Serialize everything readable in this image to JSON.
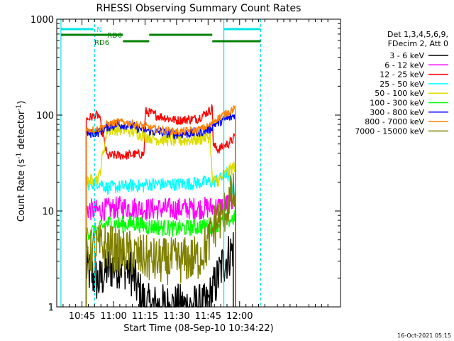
{
  "chart_data": {
    "type": "line",
    "title": "RHESSI Observing Summary Count Rates",
    "xlabel": "Start Time (08-Sep-10 10:34:22)",
    "ylabel_main": "Count Rate (s",
    "ylabel_sup1": "-1",
    "ylabel_mid": " detector",
    "ylabel_sup2": "-1",
    "ylabel_end": ")",
    "yscale": "log",
    "ylim": [
      1,
      1000
    ],
    "xlim_min": [
      33,
      168
    ],
    "x_ticks": [
      {
        "label": "10:45",
        "min": 45
      },
      {
        "label": "11:00",
        "min": 60
      },
      {
        "label": "11:15",
        "min": 75
      },
      {
        "label": "11:30",
        "min": 90
      },
      {
        "label": "11:45",
        "min": 105
      },
      {
        "label": "12:00",
        "min": 120
      }
    ],
    "y_ticks": [
      {
        "label": "1",
        "value": 1
      },
      {
        "label": "10",
        "value": 10
      },
      {
        "label": "100",
        "value": 100
      },
      {
        "label": "1000",
        "value": 1000
      }
    ],
    "legend_header": [
      "Det 1,3,4,5,6,9,",
      "FDecim 2, Att 0"
    ],
    "annotations": {
      "night": "N",
      "rd0": "RD0",
      "rd6": "RD6"
    },
    "footer_date": "16-Oct-2021 05:15",
    "vlines": [
      {
        "x": 35,
        "style": "solid",
        "color": "#00e5e5"
      },
      {
        "x": 51,
        "style": "dashed",
        "color": "#00e5e5"
      },
      {
        "x": 112.5,
        "style": "solid",
        "color": "#00e5e5"
      },
      {
        "x": 130,
        "style": "dashed",
        "color": "#00e5e5"
      }
    ],
    "flags": {
      "night": [
        {
          "x0": 35,
          "x1": 50.5,
          "color": "#00e5e5"
        },
        {
          "x0": 112.5,
          "x1": 130,
          "color": "#00e5e5"
        }
      ],
      "rd0": [
        {
          "x0": 35,
          "x1": 64.5
        },
        {
          "x0": 77,
          "x1": 107
        }
      ],
      "rd6": [
        {
          "x0": 64.5,
          "x1": 77
        },
        {
          "x0": 107,
          "x1": 130
        }
      ]
    },
    "series": [
      {
        "name": "3 - 6 keV",
        "color": "#000000",
        "noise": 0.25,
        "points": [
          [
            47,
            2.5
          ],
          [
            53,
            1.8
          ],
          [
            57,
            2.5
          ],
          [
            64,
            2.8
          ],
          [
            68,
            2.4
          ],
          [
            73,
            1.3
          ],
          [
            76,
            1
          ],
          [
            104,
            1
          ],
          [
            108,
            1.6
          ],
          [
            112,
            2.8
          ],
          [
            115,
            3.5
          ],
          [
            117,
            4.2
          ]
        ]
      },
      {
        "name": "6 - 12 keV",
        "color": "#ff00ff",
        "noise": 0.12,
        "points": [
          [
            47,
            10.5
          ],
          [
            53,
            10
          ],
          [
            57,
            10.5
          ],
          [
            64,
            11
          ],
          [
            69,
            10.8
          ],
          [
            75,
            10.5
          ],
          [
            90,
            10.5
          ],
          [
            105,
            10.8
          ],
          [
            110,
            11
          ],
          [
            114,
            11.8
          ],
          [
            118,
            13.5
          ]
        ]
      },
      {
        "name": "12 - 25 keV",
        "color": "#ff0000",
        "noise": 0.05,
        "points": [
          [
            47,
            90
          ],
          [
            49,
            95
          ],
          [
            53,
            100
          ],
          [
            57,
            37
          ],
          [
            60,
            38
          ],
          [
            66,
            38
          ],
          [
            70,
            39
          ],
          [
            74.5,
            39
          ],
          [
            75.2,
            110
          ],
          [
            80,
            100
          ],
          [
            90,
            88
          ],
          [
            100,
            92
          ],
          [
            106,
            112
          ],
          [
            107,
            120
          ],
          [
            107.5,
            48
          ],
          [
            110,
            44
          ],
          [
            116,
            53
          ],
          [
            118,
            60
          ]
        ]
      },
      {
        "name": "25 - 50 keV",
        "color": "#00ffff",
        "noise": 0.07,
        "points": [
          [
            47,
            19
          ],
          [
            53,
            20
          ],
          [
            57,
            17.5
          ],
          [
            64,
            18
          ],
          [
            70,
            18.5
          ],
          [
            74.5,
            18
          ],
          [
            75.2,
            19
          ],
          [
            90,
            19
          ],
          [
            105,
            20
          ],
          [
            107,
            20
          ],
          [
            110,
            21
          ],
          [
            114,
            25
          ],
          [
            118,
            14
          ]
        ]
      },
      {
        "name": "50 - 100 keV",
        "color": "#dddd00",
        "noise": 0.07,
        "points": [
          [
            47,
            20
          ],
          [
            53,
            22
          ],
          [
            57,
            70
          ],
          [
            60,
            72
          ],
          [
            66,
            70
          ],
          [
            70,
            67
          ],
          [
            75,
            61
          ],
          [
            80,
            57
          ],
          [
            90,
            54
          ],
          [
            100,
            56
          ],
          [
            106,
            60
          ],
          [
            107,
            20
          ],
          [
            110,
            21
          ],
          [
            114,
            25
          ],
          [
            118,
            30
          ]
        ]
      },
      {
        "name": "100 - 300 keV",
        "color": "#00ff00",
        "noise": 0.09,
        "points": [
          [
            47,
            6
          ],
          [
            53,
            6.3
          ],
          [
            57,
            7.5
          ],
          [
            64,
            7.2
          ],
          [
            70,
            7.5
          ],
          [
            75,
            7
          ],
          [
            90,
            6.5
          ],
          [
            105,
            7
          ],
          [
            110,
            7.3
          ],
          [
            114,
            8
          ],
          [
            118,
            8.5
          ]
        ]
      },
      {
        "name": "300 - 800 keV",
        "color": "#0000ff",
        "noise": 0.05,
        "points": [
          [
            47,
            64
          ],
          [
            53,
            66
          ],
          [
            57,
            75
          ],
          [
            62,
            80
          ],
          [
            68,
            78
          ],
          [
            73,
            72
          ],
          [
            78,
            68
          ],
          [
            90,
            63
          ],
          [
            100,
            65
          ],
          [
            106,
            72
          ],
          [
            108,
            80
          ],
          [
            112,
            88
          ],
          [
            116,
            95
          ],
          [
            118,
            100
          ]
        ]
      },
      {
        "name": "800 - 7000 keV",
        "color": "#ff8000",
        "noise": 0.04,
        "points": [
          [
            47,
            70
          ],
          [
            53,
            72
          ],
          [
            57,
            80
          ],
          [
            62,
            85
          ],
          [
            68,
            83
          ],
          [
            73,
            78
          ],
          [
            78,
            73
          ],
          [
            90,
            67
          ],
          [
            100,
            70
          ],
          [
            106,
            78
          ],
          [
            108,
            88
          ],
          [
            112,
            100
          ],
          [
            116,
            112
          ],
          [
            118,
            118
          ]
        ]
      },
      {
        "name": "7000 - 15000 keV",
        "color": "#808000",
        "noise": 0.25,
        "points": [
          [
            47,
            3.4
          ],
          [
            53,
            4.2
          ],
          [
            57,
            4.3
          ],
          [
            62,
            3.7
          ],
          [
            68,
            3.6
          ],
          [
            73,
            3.3
          ],
          [
            80,
            3
          ],
          [
            90,
            3
          ],
          [
            100,
            3.2
          ],
          [
            105,
            4.5
          ],
          [
            108,
            7
          ],
          [
            112,
            9
          ],
          [
            116,
            14
          ],
          [
            118,
            15
          ]
        ]
      }
    ]
  }
}
